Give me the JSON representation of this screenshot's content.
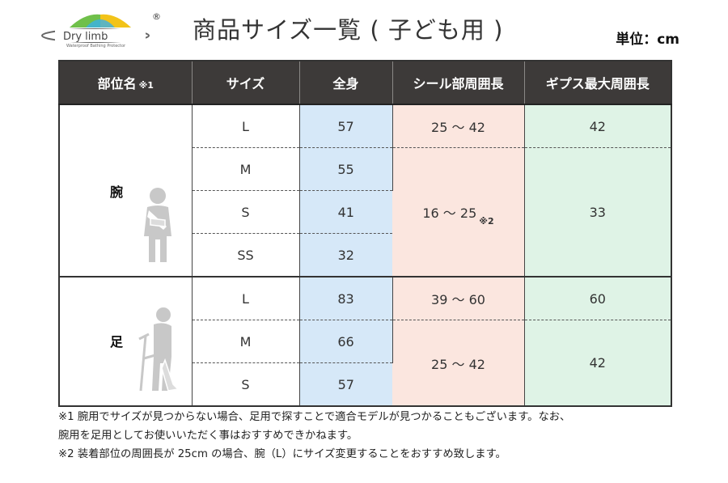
{
  "logo": {
    "text": "Dry limb",
    "tagline": "Waterproof Bathing Protector",
    "registered": "®"
  },
  "title": "商品サイズ一覧 ( 子ども用 )",
  "unit": "単位：cm",
  "headers": [
    "部位名",
    "サイズ",
    "全身",
    "シール部周囲長",
    "ギプス最大周囲長"
  ],
  "header_note": "※1",
  "arm": {
    "label": "腕",
    "rows": [
      {
        "size": "L",
        "whole": "57"
      },
      {
        "size": "M",
        "whole": "55"
      },
      {
        "size": "S",
        "whole": "41"
      },
      {
        "size": "SS",
        "whole": "32"
      }
    ],
    "seal": [
      "25 〜 42",
      "16 〜 25"
    ],
    "seal_note": "※2",
    "cast": [
      "42",
      "33"
    ]
  },
  "leg": {
    "label": "足",
    "rows": [
      {
        "size": "L",
        "whole": "83"
      },
      {
        "size": "M",
        "whole": "66"
      },
      {
        "size": "S",
        "whole": "57"
      }
    ],
    "seal": [
      "39 〜 60",
      "25 〜 42"
    ],
    "cast": [
      "60",
      "42"
    ]
  },
  "footnotes": [
    "※1 腕用でサイズが見つからない場合、足用で探すことで適合モデルが見つかることもございます。なお、",
    "腕用を足用としてお使いいただく事はおすすめできかねます。",
    "※2 装着部位の周囲長が 25cm の場合、腕（L）にサイズ変更することをおすすめ致します。"
  ],
  "colors": {
    "header_bg": "#3d3a39",
    "whole": "#d6e8f8",
    "seal": "#fbe6df",
    "cast": "#dff3e6"
  }
}
